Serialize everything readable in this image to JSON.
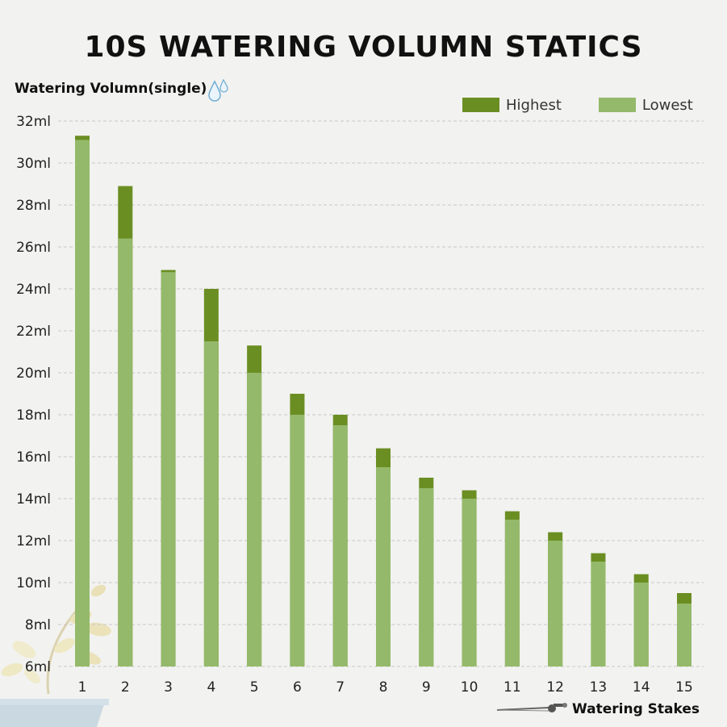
{
  "colors": {
    "highest": "#6b8e23",
    "lowest": "#94b96a",
    "grid": "#c8c8c8",
    "background": "#f2f2f0"
  },
  "icons": {
    "ylabel": "droplet-icon",
    "xlabel": "watering-stake-icon",
    "decoration": "plant-pot-decoration"
  },
  "chart_data": {
    "type": "bar",
    "title": "10S WATERING VOLUMN STATICS",
    "ylabel": "Watering Volumn(single)",
    "xlabel": "Watering Stakes",
    "categories": [
      "1",
      "2",
      "3",
      "4",
      "5",
      "6",
      "7",
      "8",
      "9",
      "10",
      "11",
      "12",
      "13",
      "14",
      "15"
    ],
    "series": [
      {
        "name": "Highest",
        "values": [
          31.3,
          28.9,
          24.9,
          24.0,
          21.3,
          19.0,
          18.0,
          16.4,
          15.0,
          14.4,
          13.4,
          12.4,
          11.4,
          10.4,
          9.5
        ]
      },
      {
        "name": "Lowest",
        "values": [
          31.1,
          26.4,
          24.8,
          21.5,
          20.0,
          18.0,
          17.5,
          15.5,
          14.5,
          14.0,
          13.0,
          12.0,
          11.0,
          10.0,
          9.0
        ]
      }
    ],
    "ylim": [
      6,
      32
    ],
    "yticks": [
      6,
      8,
      10,
      12,
      14,
      16,
      18,
      20,
      22,
      24,
      26,
      28,
      30,
      32
    ],
    "ytick_labels": [
      "6ml",
      "8ml",
      "10ml",
      "12ml",
      "14ml",
      "16ml",
      "18ml",
      "20ml",
      "22ml",
      "24ml",
      "26ml",
      "28ml",
      "30ml",
      "32ml"
    ],
    "grid": true,
    "legend_position": "top-right",
    "stacked_overlay": true
  }
}
